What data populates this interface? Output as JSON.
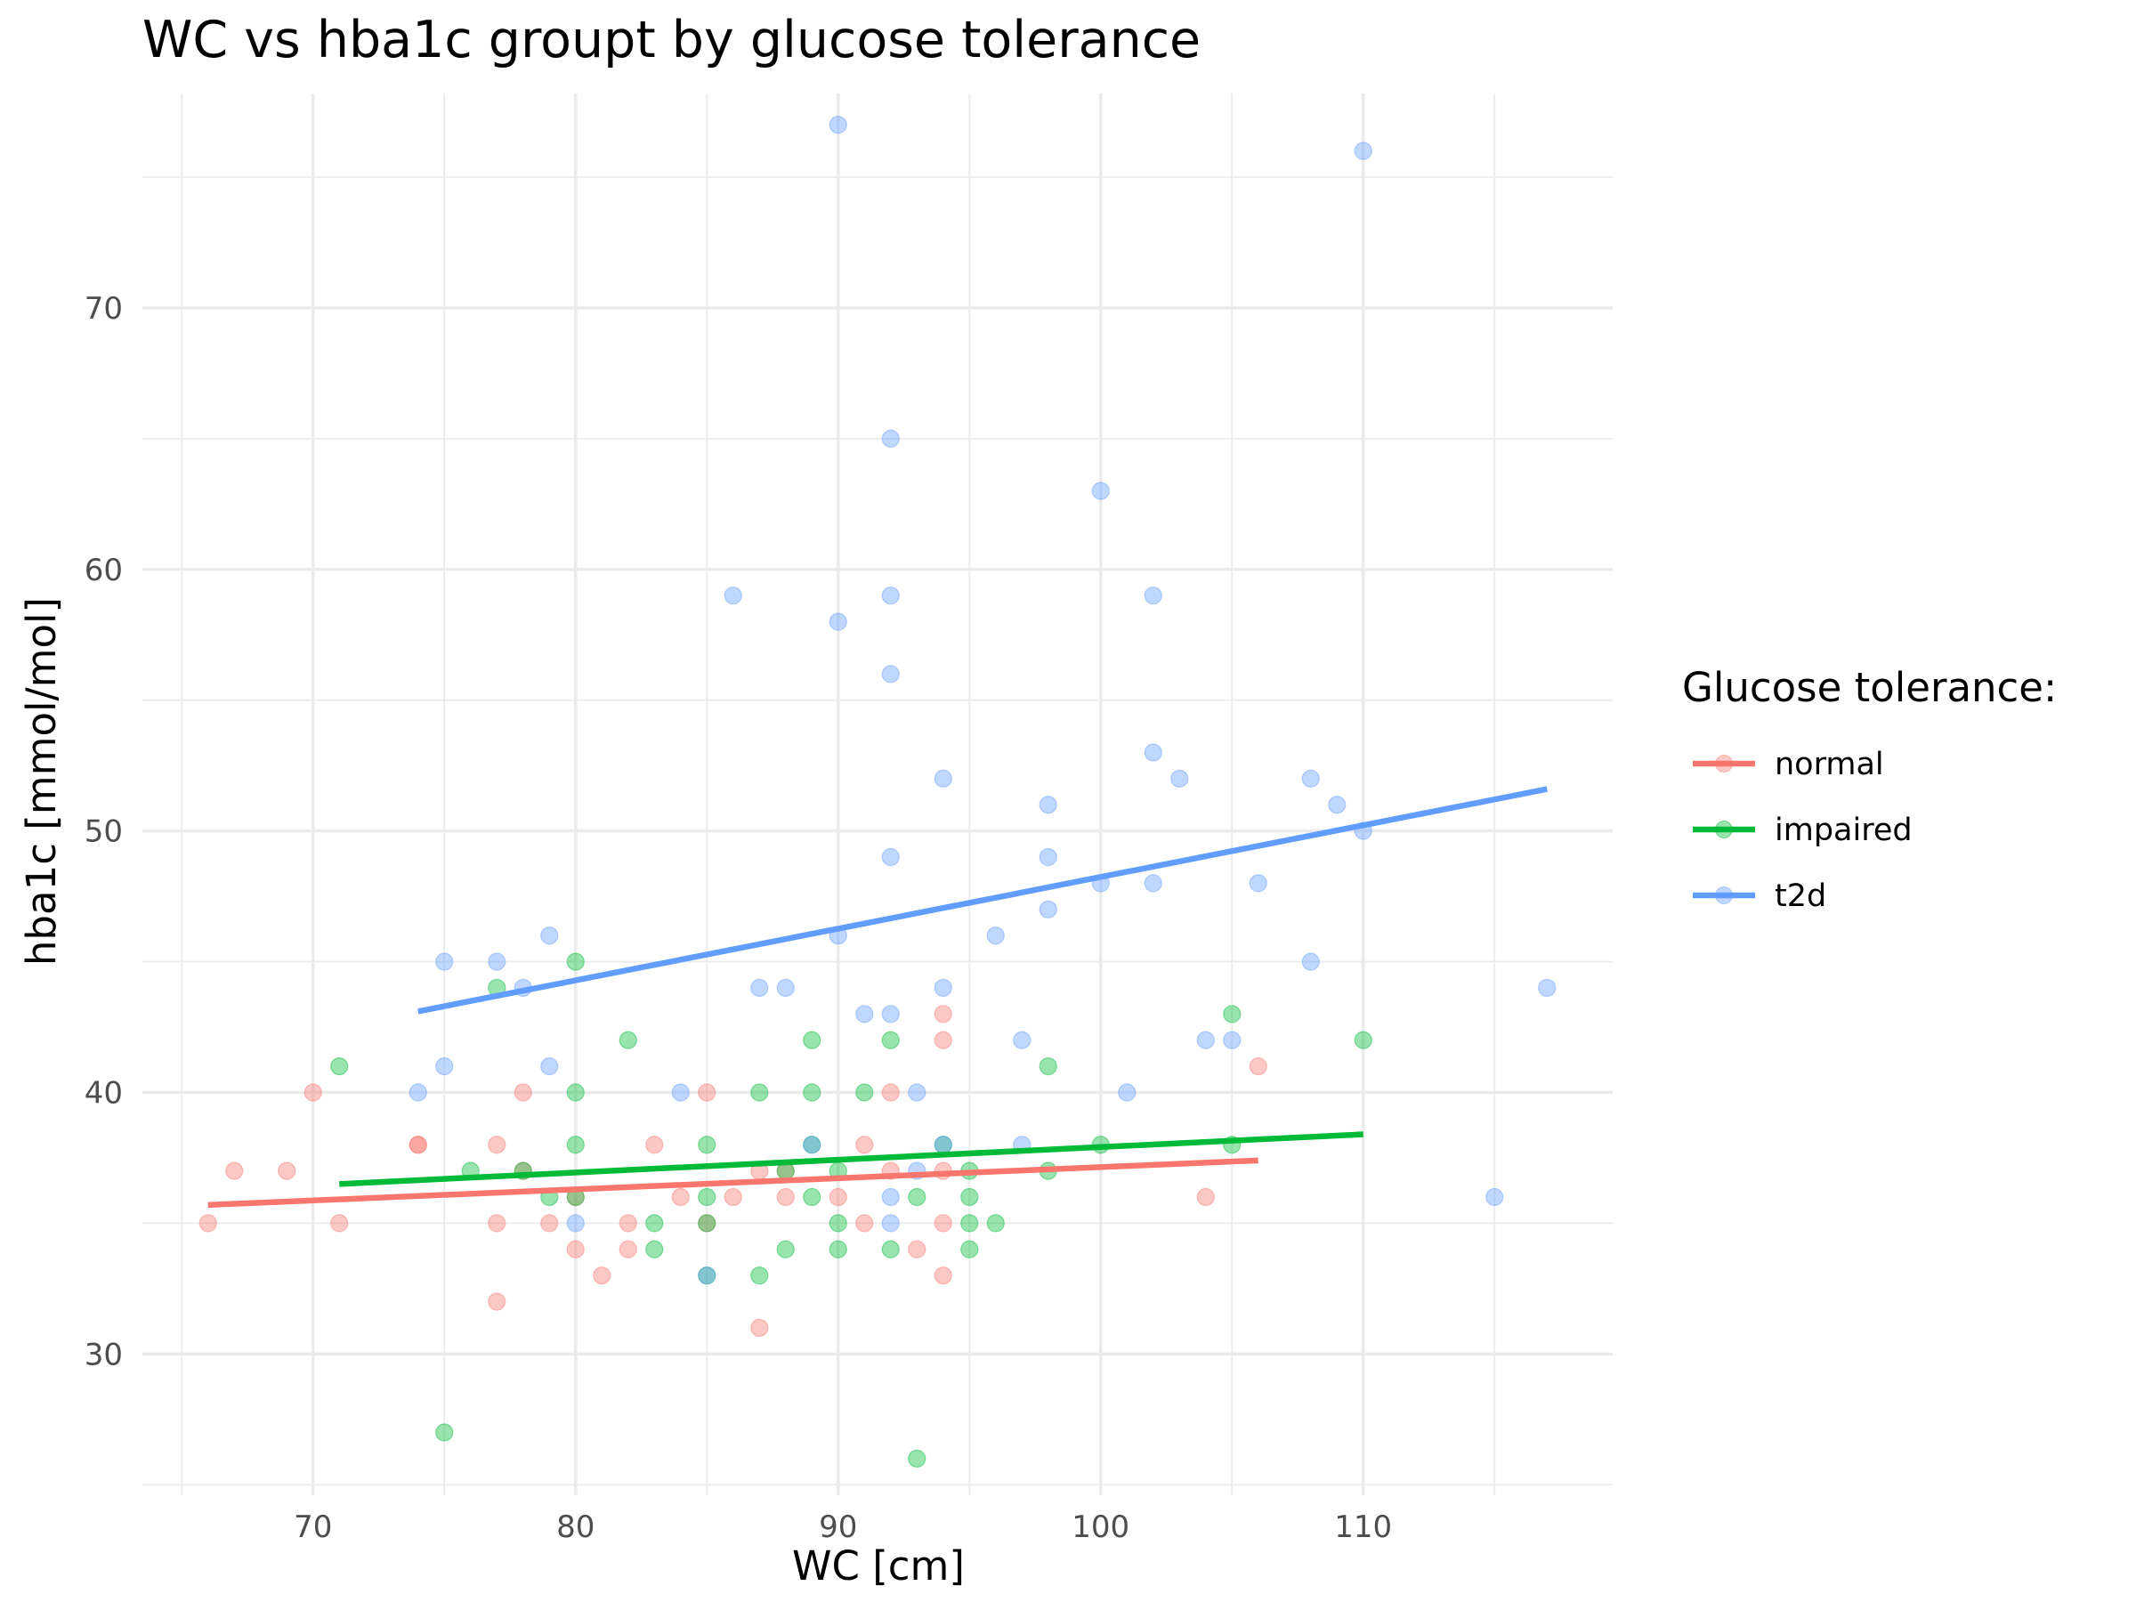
{
  "chart_data": {
    "type": "scatter",
    "title": "WC vs hba1c groupt by glucose tolerance",
    "xlabel": "WC [cm]",
    "ylabel": "hba1c [mmol/mol]",
    "xlim": [
      63.5,
      119.5
    ],
    "ylim": [
      24.6,
      78.2
    ],
    "x_ticks": [
      70,
      80,
      90,
      100,
      110
    ],
    "y_ticks": [
      30,
      40,
      50,
      60,
      70
    ],
    "grid": true,
    "legend": {
      "title": "Glucose tolerance:",
      "position": "right"
    },
    "colors": {
      "normal": "#F8766D",
      "impaired": "#00BA38",
      "t2d": "#619CFF"
    },
    "series": [
      {
        "name": "normal",
        "color": "#F8766D",
        "points": [
          [
            66,
            35
          ],
          [
            67,
            37
          ],
          [
            69,
            37
          ],
          [
            70,
            40
          ],
          [
            71,
            35
          ],
          [
            74,
            38
          ],
          [
            74,
            38
          ],
          [
            77,
            38
          ],
          [
            77,
            35
          ],
          [
            77,
            32
          ],
          [
            78,
            40
          ],
          [
            78,
            37
          ],
          [
            79,
            35
          ],
          [
            80,
            36
          ],
          [
            80,
            34
          ],
          [
            81,
            33
          ],
          [
            82,
            35
          ],
          [
            82,
            34
          ],
          [
            83,
            38
          ],
          [
            84,
            36
          ],
          [
            85,
            40
          ],
          [
            85,
            35
          ],
          [
            86,
            36
          ],
          [
            87,
            37
          ],
          [
            87,
            31
          ],
          [
            88,
            36
          ],
          [
            88,
            37
          ],
          [
            90,
            36
          ],
          [
            91,
            38
          ],
          [
            91,
            35
          ],
          [
            92,
            40
          ],
          [
            92,
            37
          ],
          [
            93,
            34
          ],
          [
            94,
            43
          ],
          [
            94,
            42
          ],
          [
            94,
            37
          ],
          [
            94,
            35
          ],
          [
            94,
            33
          ],
          [
            106,
            41
          ],
          [
            104,
            36
          ]
        ],
        "trend": {
          "x": [
            66,
            106
          ],
          "y": [
            35.7,
            37.4
          ]
        }
      },
      {
        "name": "impaired",
        "color": "#00BA38",
        "points": [
          [
            71,
            41
          ],
          [
            75,
            27
          ],
          [
            76,
            37
          ],
          [
            77,
            44
          ],
          [
            78,
            37
          ],
          [
            79,
            36
          ],
          [
            80,
            45
          ],
          [
            80,
            40
          ],
          [
            80,
            38
          ],
          [
            80,
            36
          ],
          [
            82,
            42
          ],
          [
            83,
            35
          ],
          [
            83,
            34
          ],
          [
            85,
            38
          ],
          [
            85,
            36
          ],
          [
            85,
            35
          ],
          [
            85,
            33
          ],
          [
            87,
            40
          ],
          [
            87,
            33
          ],
          [
            88,
            37
          ],
          [
            88,
            34
          ],
          [
            89,
            42
          ],
          [
            89,
            40
          ],
          [
            89,
            38
          ],
          [
            89,
            36
          ],
          [
            90,
            37
          ],
          [
            90,
            35
          ],
          [
            90,
            34
          ],
          [
            91,
            40
          ],
          [
            92,
            42
          ],
          [
            92,
            34
          ],
          [
            93,
            36
          ],
          [
            93,
            26
          ],
          [
            94,
            38
          ],
          [
            95,
            37
          ],
          [
            95,
            36
          ],
          [
            95,
            35
          ],
          [
            95,
            34
          ],
          [
            96,
            35
          ],
          [
            98,
            41
          ],
          [
            98,
            37
          ],
          [
            100,
            38
          ],
          [
            105,
            43
          ],
          [
            105,
            38
          ],
          [
            110,
            42
          ]
        ],
        "trend": {
          "x": [
            71,
            110
          ],
          "y": [
            36.5,
            38.4
          ]
        }
      },
      {
        "name": "t2d",
        "color": "#619CFF",
        "points": [
          [
            74,
            40
          ],
          [
            75,
            45
          ],
          [
            75,
            41
          ],
          [
            77,
            45
          ],
          [
            78,
            44
          ],
          [
            79,
            46
          ],
          [
            79,
            41
          ],
          [
            80,
            35
          ],
          [
            84,
            40
          ],
          [
            85,
            33
          ],
          [
            86,
            59
          ],
          [
            87,
            44
          ],
          [
            88,
            44
          ],
          [
            89,
            38
          ],
          [
            90,
            77
          ],
          [
            90,
            58
          ],
          [
            90,
            46
          ],
          [
            91,
            43
          ],
          [
            92,
            65
          ],
          [
            92,
            59
          ],
          [
            92,
            56
          ],
          [
            92,
            49
          ],
          [
            92,
            43
          ],
          [
            92,
            36
          ],
          [
            92,
            35
          ],
          [
            93,
            40
          ],
          [
            93,
            37
          ],
          [
            94,
            52
          ],
          [
            94,
            44
          ],
          [
            94,
            38
          ],
          [
            96,
            46
          ],
          [
            97,
            42
          ],
          [
            97,
            38
          ],
          [
            98,
            51
          ],
          [
            98,
            49
          ],
          [
            98,
            47
          ],
          [
            100,
            63
          ],
          [
            100,
            48
          ],
          [
            101,
            40
          ],
          [
            102,
            59
          ],
          [
            102,
            53
          ],
          [
            102,
            48
          ],
          [
            103,
            52
          ],
          [
            104,
            42
          ],
          [
            105,
            42
          ],
          [
            106,
            48
          ],
          [
            108,
            52
          ],
          [
            108,
            45
          ],
          [
            109,
            51
          ],
          [
            110,
            76
          ],
          [
            110,
            50
          ],
          [
            115,
            36
          ],
          [
            117,
            44
          ]
        ],
        "trend": {
          "x": [
            74,
            117
          ],
          "y": [
            43.1,
            51.6
          ]
        }
      }
    ]
  }
}
